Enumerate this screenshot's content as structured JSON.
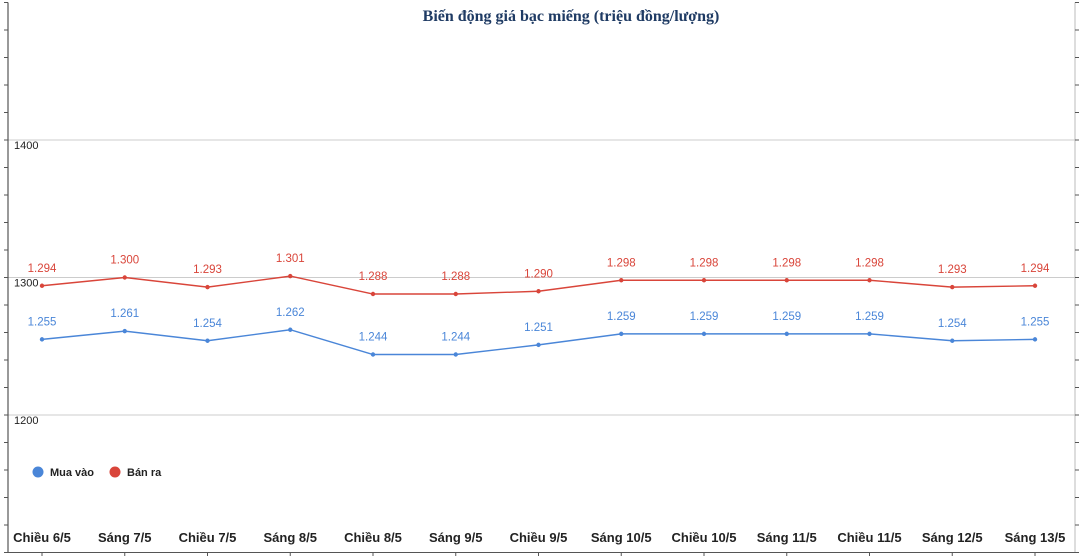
{
  "chart_data": {
    "type": "line",
    "title": "Biến động giá bạc miếng (triệu đồng/lượng)",
    "categories": [
      "Chiều 6/5",
      "Sáng 7/5",
      "Chiều 7/5",
      "Sáng 8/5",
      "Chiều 8/5",
      "Sáng 9/5",
      "Chiều 9/5",
      "Sáng 10/5",
      "Chiều 10/5",
      "Sáng 11/5",
      "Chiều 11/5",
      "Sáng 12/5",
      "Sáng 13/5"
    ],
    "series": [
      {
        "name": "Mua vào",
        "color": "#4a86d8",
        "values": [
          1255,
          1261,
          1254,
          1262,
          1244,
          1244,
          1251,
          1259,
          1259,
          1259,
          1259,
          1254,
          1255
        ],
        "labels": [
          "1.255",
          "1.261",
          "1.254",
          "1.262",
          "1.244",
          "1.244",
          "1.251",
          "1.259",
          "1.259",
          "1.259",
          "1.259",
          "1.254",
          "1.255"
        ]
      },
      {
        "name": "Bán ra",
        "color": "#d9453a",
        "values": [
          1294,
          1300,
          1293,
          1301,
          1288,
          1288,
          1290,
          1298,
          1298,
          1298,
          1298,
          1293,
          1294
        ],
        "labels": [
          "1.294",
          "1.300",
          "1.293",
          "1.301",
          "1.288",
          "1.288",
          "1.290",
          "1.298",
          "1.298",
          "1.298",
          "1.298",
          "1.293",
          "1.294"
        ]
      }
    ],
    "yticks": [
      1200,
      1300,
      1400
    ],
    "ytick_labels": [
      "1200",
      "1300",
      "1400"
    ],
    "ylim": [
      1100,
      1500
    ],
    "grid": true,
    "legend_position": "bottom-left"
  }
}
